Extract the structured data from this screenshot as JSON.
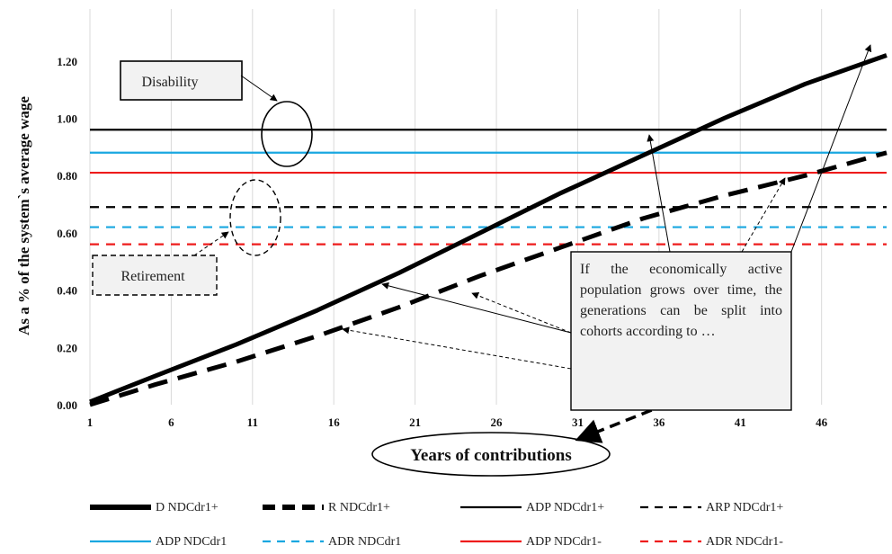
{
  "chart_data": {
    "type": "line",
    "ylabel": "As a % of the system`s average wage",
    "xlabel": "Years of contributions",
    "xlim": [
      1,
      50
    ],
    "ylim": [
      0,
      1.3
    ],
    "x_ticks": [
      "1",
      "6",
      "11",
      "16",
      "21",
      "26",
      "31",
      "36",
      "41",
      "46"
    ],
    "y_ticks": [
      "0.00",
      "0.20",
      "0.40",
      "0.60",
      "0.80",
      "1.00",
      "1.20"
    ],
    "grid": "vertical",
    "legend_position": "bottom",
    "series": [
      {
        "name": "D NDCdr1+",
        "color": "#000000",
        "style": "solid-thick",
        "x": [
          1,
          5,
          10,
          15,
          20,
          25,
          30,
          35,
          40,
          45,
          50
        ],
        "y": [
          0.01,
          0.1,
          0.21,
          0.33,
          0.46,
          0.6,
          0.74,
          0.87,
          1.0,
          1.12,
          1.22
        ]
      },
      {
        "name": "R NDCdr1+",
        "color": "#000000",
        "style": "dashed-thick",
        "x": [
          1,
          5,
          10,
          15,
          20,
          25,
          30,
          35,
          40,
          45,
          50
        ],
        "y": [
          0.0,
          0.07,
          0.15,
          0.24,
          0.34,
          0.45,
          0.55,
          0.65,
          0.73,
          0.8,
          0.88
        ]
      },
      {
        "name": "ADP NDCdr1+",
        "color": "#000000",
        "style": "solid",
        "constant": 0.96
      },
      {
        "name": "ARP NDCdr1+",
        "color": "#000000",
        "style": "dashed",
        "constant": 0.69
      },
      {
        "name": "ADP NDCdr1",
        "color": "#19a7e0",
        "style": "solid",
        "constant": 0.88
      },
      {
        "name": "ADR NDCdr1",
        "color": "#19a7e0",
        "style": "dashed",
        "constant": 0.62
      },
      {
        "name": "ADP NDCdr1-",
        "color": "#ee1c1c",
        "style": "solid",
        "constant": 0.81
      },
      {
        "name": "ADR NDCdr1-",
        "color": "#ee1c1c",
        "style": "dashed",
        "constant": 0.56
      }
    ],
    "annotations": {
      "disability": "Disability",
      "retirement": "Retirement",
      "note": "If the economically active population grows over time, the generations can be split into cohorts according to …"
    }
  }
}
